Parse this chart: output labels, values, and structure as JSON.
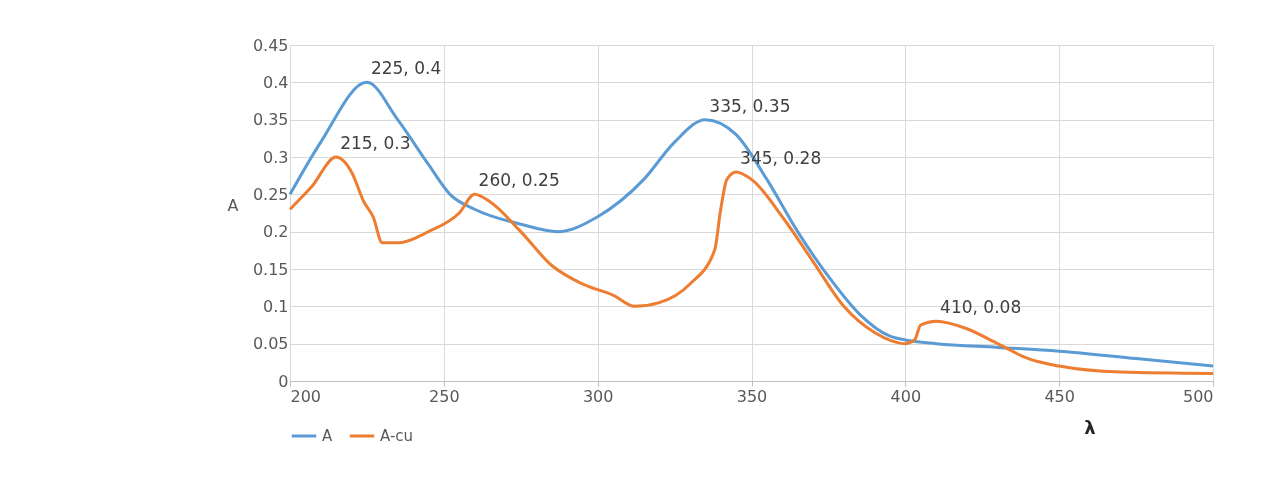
{
  "chart_data": {
    "type": "line",
    "xlabel": "λ",
    "ylabel": "A",
    "xlim": [
      200,
      500
    ],
    "xticks": [
      200,
      250,
      300,
      350,
      400,
      450,
      500
    ],
    "ylim": [
      0,
      0.45
    ],
    "yticks": [
      0,
      0.05,
      0.1,
      0.15,
      0.2,
      0.25,
      0.3,
      0.35,
      0.4,
      0.45
    ],
    "grid": true,
    "legend": "bottom",
    "marker": "none",
    "line_style": "solid",
    "series": [
      {
        "name": "A",
        "color": "#5b9bd5",
        "x": [
          200,
          210,
          225,
          235,
          245,
          252,
          260,
          275,
          287,
          300,
          315,
          325,
          335,
          345,
          355,
          365,
          375,
          385,
          395,
          400,
          410,
          430,
          450,
          475,
          500
        ],
        "values": [
          0.25,
          0.32,
          0.4,
          0.35,
          0.29,
          0.25,
          0.23,
          0.21,
          0.2,
          0.22,
          0.27,
          0.32,
          0.35,
          0.33,
          0.27,
          0.2,
          0.14,
          0.09,
          0.06,
          0.055,
          0.05,
          0.045,
          0.04,
          0.03,
          0.02
        ]
      },
      {
        "name": "A-cu",
        "color": "#ed7d31",
        "x": [
          200,
          207,
          215,
          220,
          224,
          227,
          230,
          235,
          245,
          255,
          260,
          265,
          275,
          285,
          295,
          305,
          312,
          320,
          330,
          338,
          340,
          342,
          345,
          350,
          360,
          370,
          380,
          390,
          400,
          403,
          405,
          410,
          420,
          430,
          440,
          450,
          470,
          500
        ],
        "values": [
          0.23,
          0.26,
          0.3,
          0.28,
          0.24,
          0.22,
          0.185,
          0.185,
          0.2,
          0.225,
          0.25,
          0.24,
          0.2,
          0.155,
          0.13,
          0.115,
          0.1,
          0.105,
          0.13,
          0.175,
          0.23,
          0.27,
          0.28,
          0.27,
          0.22,
          0.16,
          0.1,
          0.065,
          0.05,
          0.055,
          0.075,
          0.08,
          0.07,
          0.05,
          0.03,
          0.02,
          0.012,
          0.01
        ]
      }
    ],
    "annotations": [
      {
        "text": "225, 0.4",
        "x": 225,
        "y": 0.4
      },
      {
        "text": "215, 0.3",
        "x": 215,
        "y": 0.3
      },
      {
        "text": "260, 0.25",
        "x": 260,
        "y": 0.25
      },
      {
        "text": "335, 0.35",
        "x": 335,
        "y": 0.35
      },
      {
        "text": "345, 0.28",
        "x": 345,
        "y": 0.28
      },
      {
        "text": "410, 0.08",
        "x": 410,
        "y": 0.08
      }
    ]
  }
}
